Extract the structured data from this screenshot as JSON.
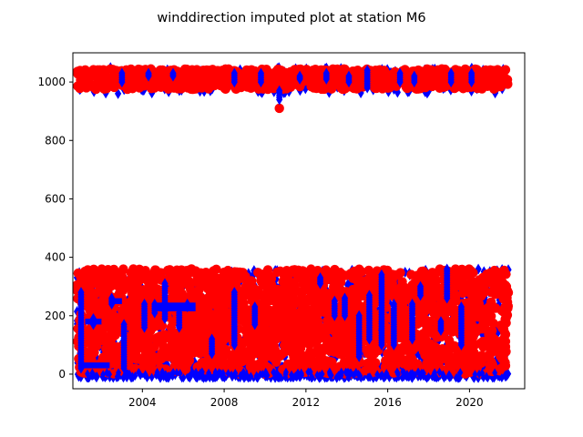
{
  "chart_data": {
    "type": "scatter",
    "title": "winddirection imputed plot at station M6",
    "xlabel": "",
    "ylabel": "",
    "x_range_years": [
      2000.6,
      2022.7
    ],
    "ylim": [
      -50,
      1100
    ],
    "x_ticks": [
      {
        "value": 2004,
        "label": "2004"
      },
      {
        "value": 2008,
        "label": "2008"
      },
      {
        "value": 2012,
        "label": "2012"
      },
      {
        "value": 2016,
        "label": "2016"
      },
      {
        "value": 2020,
        "label": "2020"
      }
    ],
    "y_ticks": [
      {
        "value": 0,
        "label": "0"
      },
      {
        "value": 200,
        "label": "200"
      },
      {
        "value": 400,
        "label": "400"
      },
      {
        "value": 600,
        "label": "600"
      },
      {
        "value": 800,
        "label": "800"
      },
      {
        "value": 1000,
        "label": "1000"
      }
    ],
    "grid": false,
    "legend": "none",
    "series": [
      {
        "color": "#0000ff",
        "marker": "diamond",
        "description_bands": [
          {
            "x_start": 2000.8,
            "x_end": 2021.9,
            "y_min": -10,
            "y_max": 360
          },
          {
            "x_start": 2000.8,
            "x_end": 2021.9,
            "y_min": 960,
            "y_max": 1050
          }
        ],
        "highlights": [
          {
            "x": 2001.0,
            "y_min": 20,
            "y_max": 280
          },
          {
            "x": 2001.6,
            "y_min": 170,
            "y_max": 190
          },
          {
            "x": 2002.5,
            "y_min": 240,
            "y_max": 260
          },
          {
            "x": 2003.0,
            "y_min": 1000,
            "y_max": 1030
          },
          {
            "x": 2003.1,
            "y_min": 20,
            "y_max": 170
          },
          {
            "x": 2004.1,
            "y_min": 160,
            "y_max": 240
          },
          {
            "x": 2004.3,
            "y_min": 1020,
            "y_max": 1030
          },
          {
            "x": 2004.6,
            "y_min": 210,
            "y_max": 240
          },
          {
            "x": 2005.1,
            "y_min": 190,
            "y_max": 310
          },
          {
            "x": 2005.5,
            "y_min": 1020,
            "y_max": 1030
          },
          {
            "x": 2005.8,
            "y_min": 160,
            "y_max": 210
          },
          {
            "x": 2006.2,
            "y_min": 230,
            "y_max": 240
          },
          {
            "x": 2007.4,
            "y_min": 70,
            "y_max": 120
          },
          {
            "x": 2008.5,
            "y_min": 100,
            "y_max": 280
          },
          {
            "x": 2008.5,
            "y_min": 1000,
            "y_max": 1030
          },
          {
            "x": 2009.5,
            "y_min": 170,
            "y_max": 230
          },
          {
            "x": 2009.8,
            "y_min": 1000,
            "y_max": 1030
          },
          {
            "x": 2010.7,
            "y_min": 940,
            "y_max": 970
          },
          {
            "x": 2011.7,
            "y_min": 1010,
            "y_max": 1020
          },
          {
            "x": 2012.7,
            "y_min": 310,
            "y_max": 330
          },
          {
            "x": 2013.0,
            "y_min": 1010,
            "y_max": 1030
          },
          {
            "x": 2013.4,
            "y_min": 200,
            "y_max": 250
          },
          {
            "x": 2013.9,
            "y_min": 200,
            "y_max": 260
          },
          {
            "x": 2014.1,
            "y_min": 1000,
            "y_max": 1020
          },
          {
            "x": 2014.6,
            "y_min": 60,
            "y_max": 200
          },
          {
            "x": 2015.0,
            "y_min": 980,
            "y_max": 1040
          },
          {
            "x": 2015.1,
            "y_min": 120,
            "y_max": 270
          },
          {
            "x": 2015.7,
            "y_min": 100,
            "y_max": 340
          },
          {
            "x": 2016.3,
            "y_min": 100,
            "y_max": 240
          },
          {
            "x": 2016.6,
            "y_min": 1000,
            "y_max": 1030
          },
          {
            "x": 2017.2,
            "y_min": 120,
            "y_max": 240
          },
          {
            "x": 2017.3,
            "y_min": 1000,
            "y_max": 1020
          },
          {
            "x": 2017.6,
            "y_min": 270,
            "y_max": 300
          },
          {
            "x": 2018.6,
            "y_min": 150,
            "y_max": 180
          },
          {
            "x": 2018.9,
            "y_min": 260,
            "y_max": 360
          },
          {
            "x": 2019.1,
            "y_min": 1000,
            "y_max": 1030
          },
          {
            "x": 2019.6,
            "y_min": 100,
            "y_max": 230
          },
          {
            "x": 2020.1,
            "y_min": 1000,
            "y_max": 1030
          }
        ]
      },
      {
        "color": "#ff0000",
        "marker": "circle",
        "description_bands": [
          {
            "x_start": 2000.8,
            "x_end": 2021.9,
            "y_min": 0,
            "y_max": 360
          },
          {
            "x_start": 2000.8,
            "x_end": 2021.9,
            "y_min": 975,
            "y_max": 1045
          }
        ],
        "outliers": [
          {
            "x": 2010.7,
            "y": 910
          }
        ]
      }
    ]
  }
}
